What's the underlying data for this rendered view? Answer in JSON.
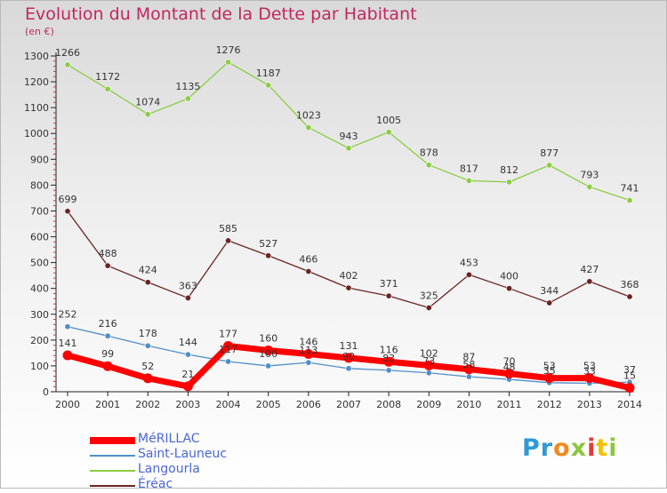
{
  "header": {
    "title": "Evolution du Montant de la Dette par Habitant",
    "unit": "(en €)"
  },
  "chart_data": {
    "type": "line",
    "title": "Evolution du Montant de la Dette par Habitant",
    "ylabel": "(en €)",
    "xlabel": "",
    "x": [
      "2000",
      "2001",
      "2002",
      "2003",
      "2004",
      "2005",
      "2006",
      "2007",
      "2008",
      "2009",
      "2010",
      "2011",
      "2012",
      "2013",
      "2014"
    ],
    "ylim": [
      0,
      1300
    ],
    "yticks": [
      "0",
      "100",
      "200",
      "300",
      "400",
      "500",
      "600",
      "700",
      "800",
      "900",
      "1000",
      "1100",
      "1200",
      "1300"
    ],
    "grid": false,
    "legend_position": "bottom-left",
    "series": [
      {
        "name": "MéRILLAC",
        "color": "#ff0000",
        "emphasis": true,
        "values": [
          141,
          99,
          52,
          21,
          177,
          160,
          146,
          131,
          116,
          102,
          87,
          70,
          53,
          53,
          15
        ]
      },
      {
        "name": "Saint-Launeuc",
        "color": "#4f8ec9",
        "values": [
          252,
          216,
          178,
          144,
          117,
          100,
          113,
          90,
          83,
          73,
          58,
          48,
          35,
          33,
          37
        ]
      },
      {
        "name": "Langourla",
        "color": "#8ccc43",
        "values": [
          1266,
          1172,
          1074,
          1135,
          1276,
          1187,
          1023,
          943,
          1005,
          878,
          817,
          812,
          877,
          793,
          741
        ]
      },
      {
        "name": "Éréac",
        "color": "#6b2323",
        "values": [
          699,
          488,
          424,
          363,
          585,
          527,
          466,
          402,
          371,
          325,
          453,
          400,
          344,
          427,
          368
        ]
      }
    ]
  },
  "logo": {
    "letters": [
      "P",
      "r",
      "o",
      "x",
      "i",
      "t",
      "i"
    ],
    "colors": [
      "#2e9ad6",
      "#2e9ad6",
      "#f08a1e",
      "#8cc63f",
      "#e53935",
      "#f2c200",
      "#8cc63f"
    ]
  }
}
